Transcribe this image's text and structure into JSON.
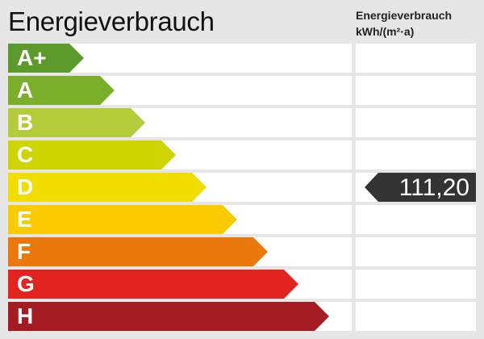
{
  "title": "Energieverbrauch",
  "subtitle_line1": "Energieverbrauch",
  "subtitle_line2": "kWh/(m²·a)",
  "classes": [
    {
      "label": "A+",
      "color": "#5c9a2c"
    },
    {
      "label": "A",
      "color": "#7bae2a"
    },
    {
      "label": "B",
      "color": "#b4cb3a"
    },
    {
      "label": "C",
      "color": "#cdd400"
    },
    {
      "label": "D",
      "color": "#f1de00"
    },
    {
      "label": "E",
      "color": "#fbcb00"
    },
    {
      "label": "F",
      "color": "#eb780d"
    },
    {
      "label": "G",
      "color": "#e3231f"
    },
    {
      "label": "H",
      "color": "#a51b22"
    }
  ],
  "current_class": "D",
  "value": "111,20",
  "value_color": "#333333"
}
